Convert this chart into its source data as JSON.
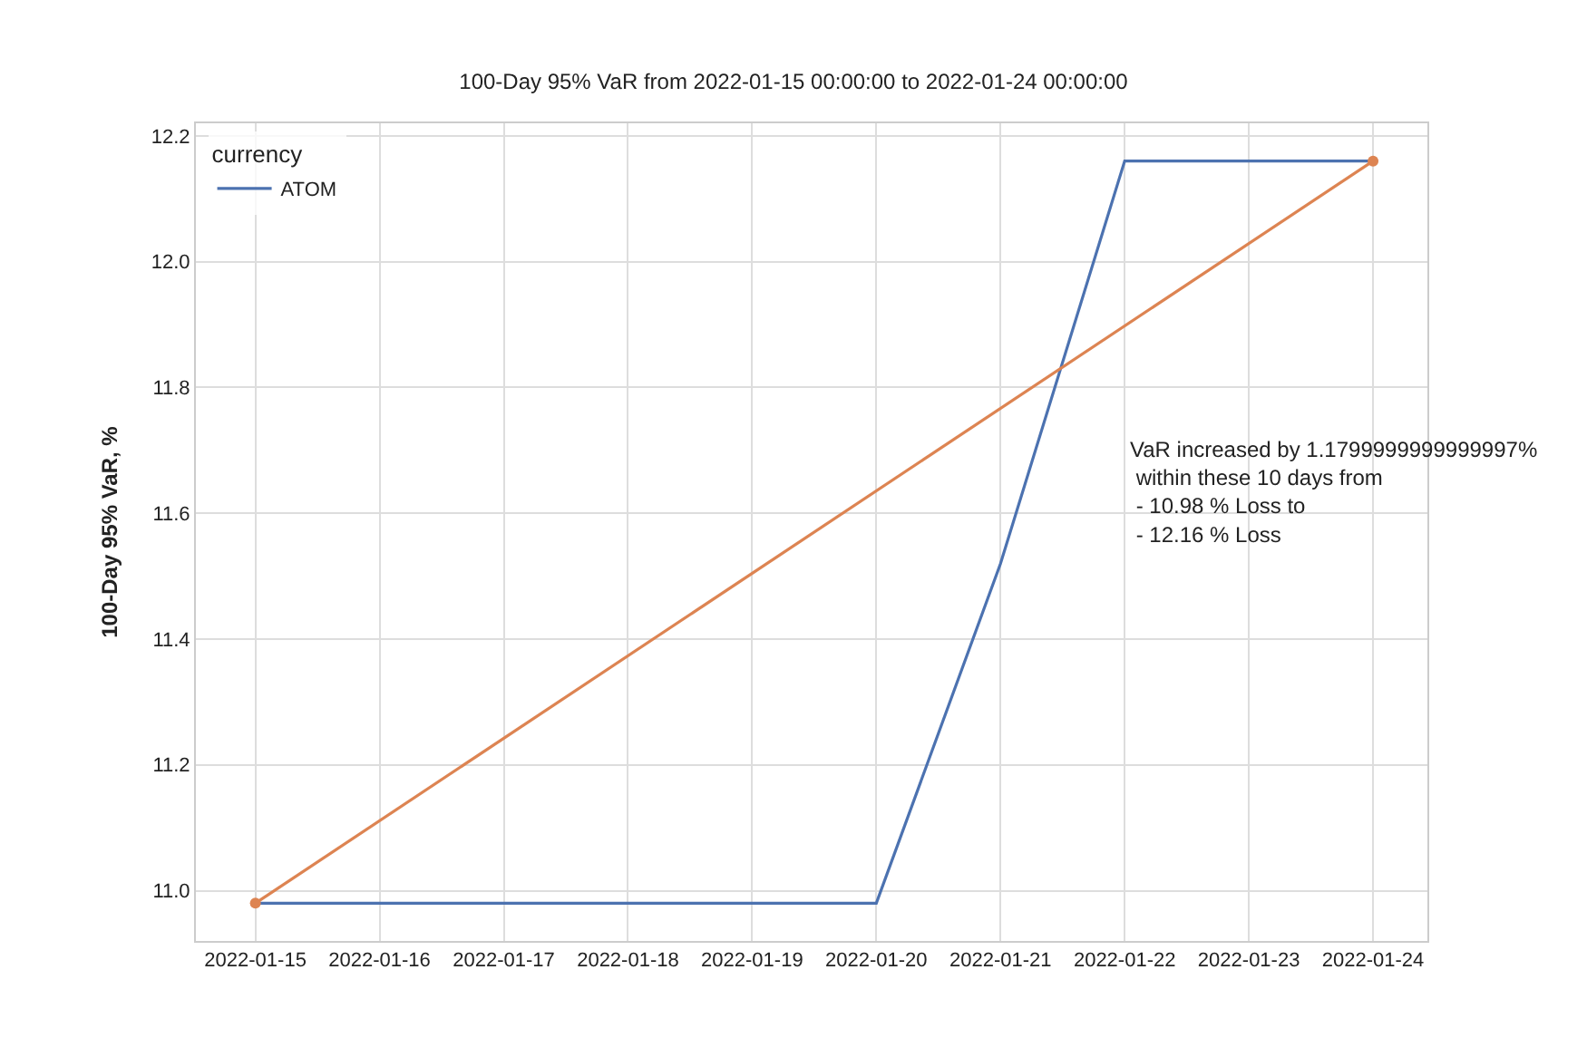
{
  "chart_data": {
    "type": "line",
    "title": "100-Day 95% VaR from 2022-01-15 00:00:00 to 2022-01-24 00:00:00",
    "ylabel": "100-Day 95% VaR, %",
    "legend_title": "currency",
    "x": [
      "2022-01-15",
      "2022-01-16",
      "2022-01-17",
      "2022-01-18",
      "2022-01-19",
      "2022-01-20",
      "2022-01-21",
      "2022-01-22",
      "2022-01-23",
      "2022-01-24"
    ],
    "series": [
      {
        "name": "ATOM",
        "color": "#4c72b0",
        "marker": "none",
        "values": [
          10.98,
          10.98,
          10.98,
          10.98,
          10.98,
          10.98,
          11.52,
          12.16,
          12.16,
          12.16
        ]
      },
      {
        "type": "line",
        "color": "#dd8452",
        "marker": "circle",
        "x": [
          "2022-01-15",
          "2022-01-24"
        ],
        "values": [
          10.98,
          12.16
        ]
      }
    ],
    "annotations": [
      "VaR increased by 1.1799999999999997%\n within these 10 days from\n - 10.98 % Loss to\n - 12.16 % Loss"
    ],
    "xlim": [
      "2022-01-14T12:30",
      "2022-01-24T10:30"
    ],
    "ylim": [
      10.92,
      12.22
    ],
    "xticks": [
      "2022-01-15",
      "2022-01-16",
      "2022-01-17",
      "2022-01-18",
      "2022-01-19",
      "2022-01-20",
      "2022-01-21",
      "2022-01-22",
      "2022-01-23",
      "2022-01-24"
    ],
    "yticks": [
      {
        "value": 11.0,
        "label": "11.0"
      },
      {
        "value": 11.2,
        "label": "11.2"
      },
      {
        "value": 11.4,
        "label": "11.4"
      },
      {
        "value": 11.6,
        "label": "11.6"
      },
      {
        "value": 11.8,
        "label": "11.8"
      },
      {
        "value": 12.0,
        "label": "12.0"
      },
      {
        "value": 12.2,
        "label": "12.2"
      }
    ],
    "grid": true,
    "legend": "top left"
  }
}
